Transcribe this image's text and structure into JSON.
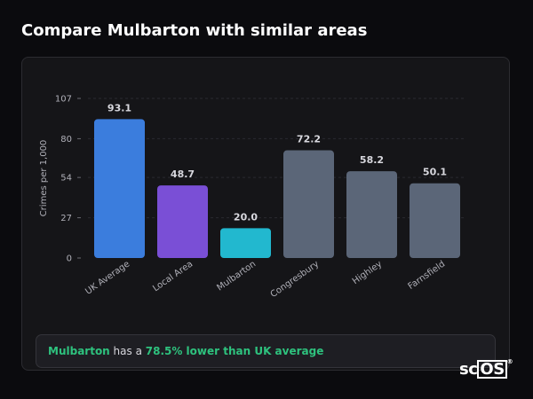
{
  "page": {
    "title": "Compare Mulbarton with similar areas"
  },
  "summary": {
    "area": "Mulbarton",
    "middle": " has a ",
    "highlight": "78.5% lower than UK average"
  },
  "logo": {
    "prefix": "sc",
    "boxed": "OS",
    "mark": "®"
  },
  "colors": {
    "uk_average": "#3b7ddd",
    "local_area": "#7a4fd6",
    "mulbarton": "#22b8cf",
    "similar": "#5b6678",
    "highlight_text": "#2ec27e"
  },
  "chart_data": {
    "type": "bar",
    "ylabel": "Crimes per 1,000",
    "ylim": [
      0,
      107
    ],
    "yticks": [
      0,
      27,
      54,
      80,
      107
    ],
    "grid": true,
    "categories": [
      "UK Average",
      "Local Area",
      "Mulbarton",
      "Congresbury",
      "Highley",
      "Farnsfield"
    ],
    "values": [
      93.1,
      48.7,
      20.0,
      72.2,
      58.2,
      50.1
    ],
    "value_labels": [
      "93.1",
      "48.7",
      "20.0",
      "72.2",
      "58.2",
      "50.1"
    ],
    "bar_colors": [
      "#3b7ddd",
      "#7a4fd6",
      "#22b8cf",
      "#5b6678",
      "#5b6678",
      "#5b6678"
    ]
  }
}
